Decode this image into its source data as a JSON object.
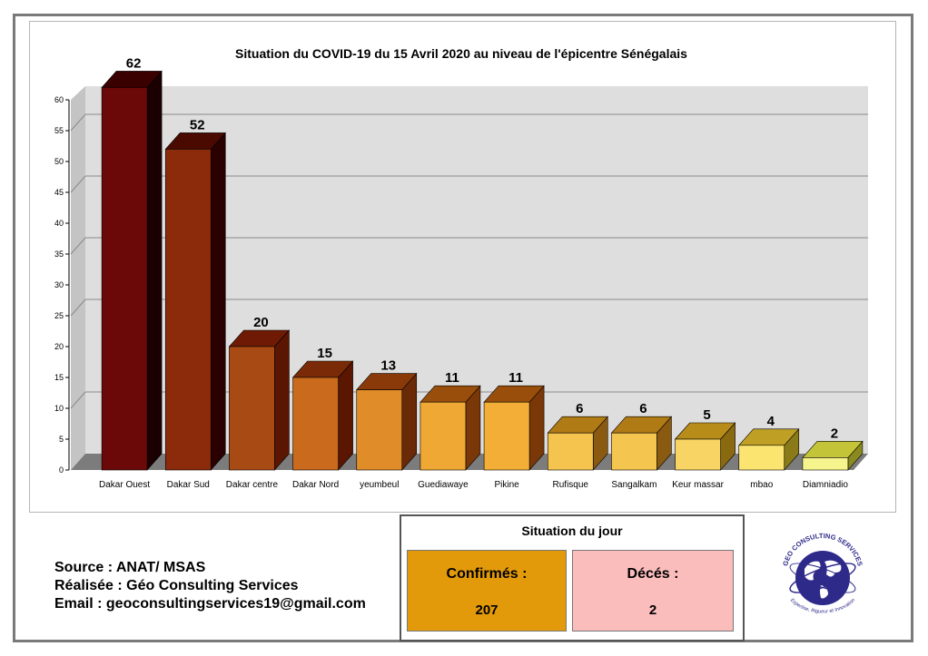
{
  "chart_data": {
    "type": "bar",
    "title": "Situation du COVID-19 du 15 Avril 2020 au niveau de l'épicentre Sénégalais",
    "categories": [
      "Dakar Ouest",
      "Dakar Sud",
      "Dakar centre",
      "Dakar Nord",
      "yeumbeul",
      "Guediawaye",
      "Pikine",
      "Rufisque",
      "Sangalkam",
      "Keur massar",
      "mbao",
      "Diamniadio"
    ],
    "values": [
      62,
      52,
      20,
      15,
      13,
      11,
      11,
      6,
      6,
      5,
      4,
      2
    ],
    "ylim": [
      0,
      60
    ],
    "yticks": [
      "0",
      "5",
      "10",
      "15",
      "20",
      "25",
      "30",
      "35",
      "40",
      "45",
      "50",
      "55",
      "60"
    ],
    "gridlines": [
      10,
      25,
      35,
      45,
      55
    ],
    "bar_colors": [
      "#6b0808",
      "#8c2a0c",
      "#a84a14",
      "#c96a1c",
      "#e08c28",
      "#efa834",
      "#f2ae36",
      "#f4c44e",
      "#f4c650",
      "#f8d464",
      "#fce470",
      "#f6f48c"
    ],
    "bar_side_colors": [
      "#1a0000",
      "#2a0000",
      "#5a1600",
      "#5a1600",
      "#6a2a08",
      "#7a3808",
      "#7a3808",
      "#8a5a10",
      "#8a5a10",
      "#8a6a10",
      "#8a7a18",
      "#8a8a20"
    ],
    "bar_top_colors": [
      "#3a0000",
      "#4a0a02",
      "#6e1a04",
      "#7a2a06",
      "#8a3a08",
      "#9a4e0c",
      "#9a4e0c",
      "#b07a14",
      "#b07a14",
      "#b88c18",
      "#c0a024",
      "#c4c438"
    ],
    "wall_color": "#dedede",
    "floor_color": "#7c7c7c"
  },
  "footer": {
    "source": "Source : ANAT/ MSAS",
    "made_by": "Réalisée : Géo Consulting Services",
    "email": "Email : geoconsultingservices19@gmail.com"
  },
  "day_situation": {
    "title": "Situation du jour",
    "confirmed_label": "Confirmés :",
    "confirmed_value": "207",
    "deaths_label": "Décés :",
    "deaths_value": "2"
  },
  "logo": {
    "name": "GEO CONSULTING SERVICES",
    "tagline": "Expertise, Rigueur et Innovation",
    "icon": "globe-icon",
    "color": "#2e2a8a"
  }
}
